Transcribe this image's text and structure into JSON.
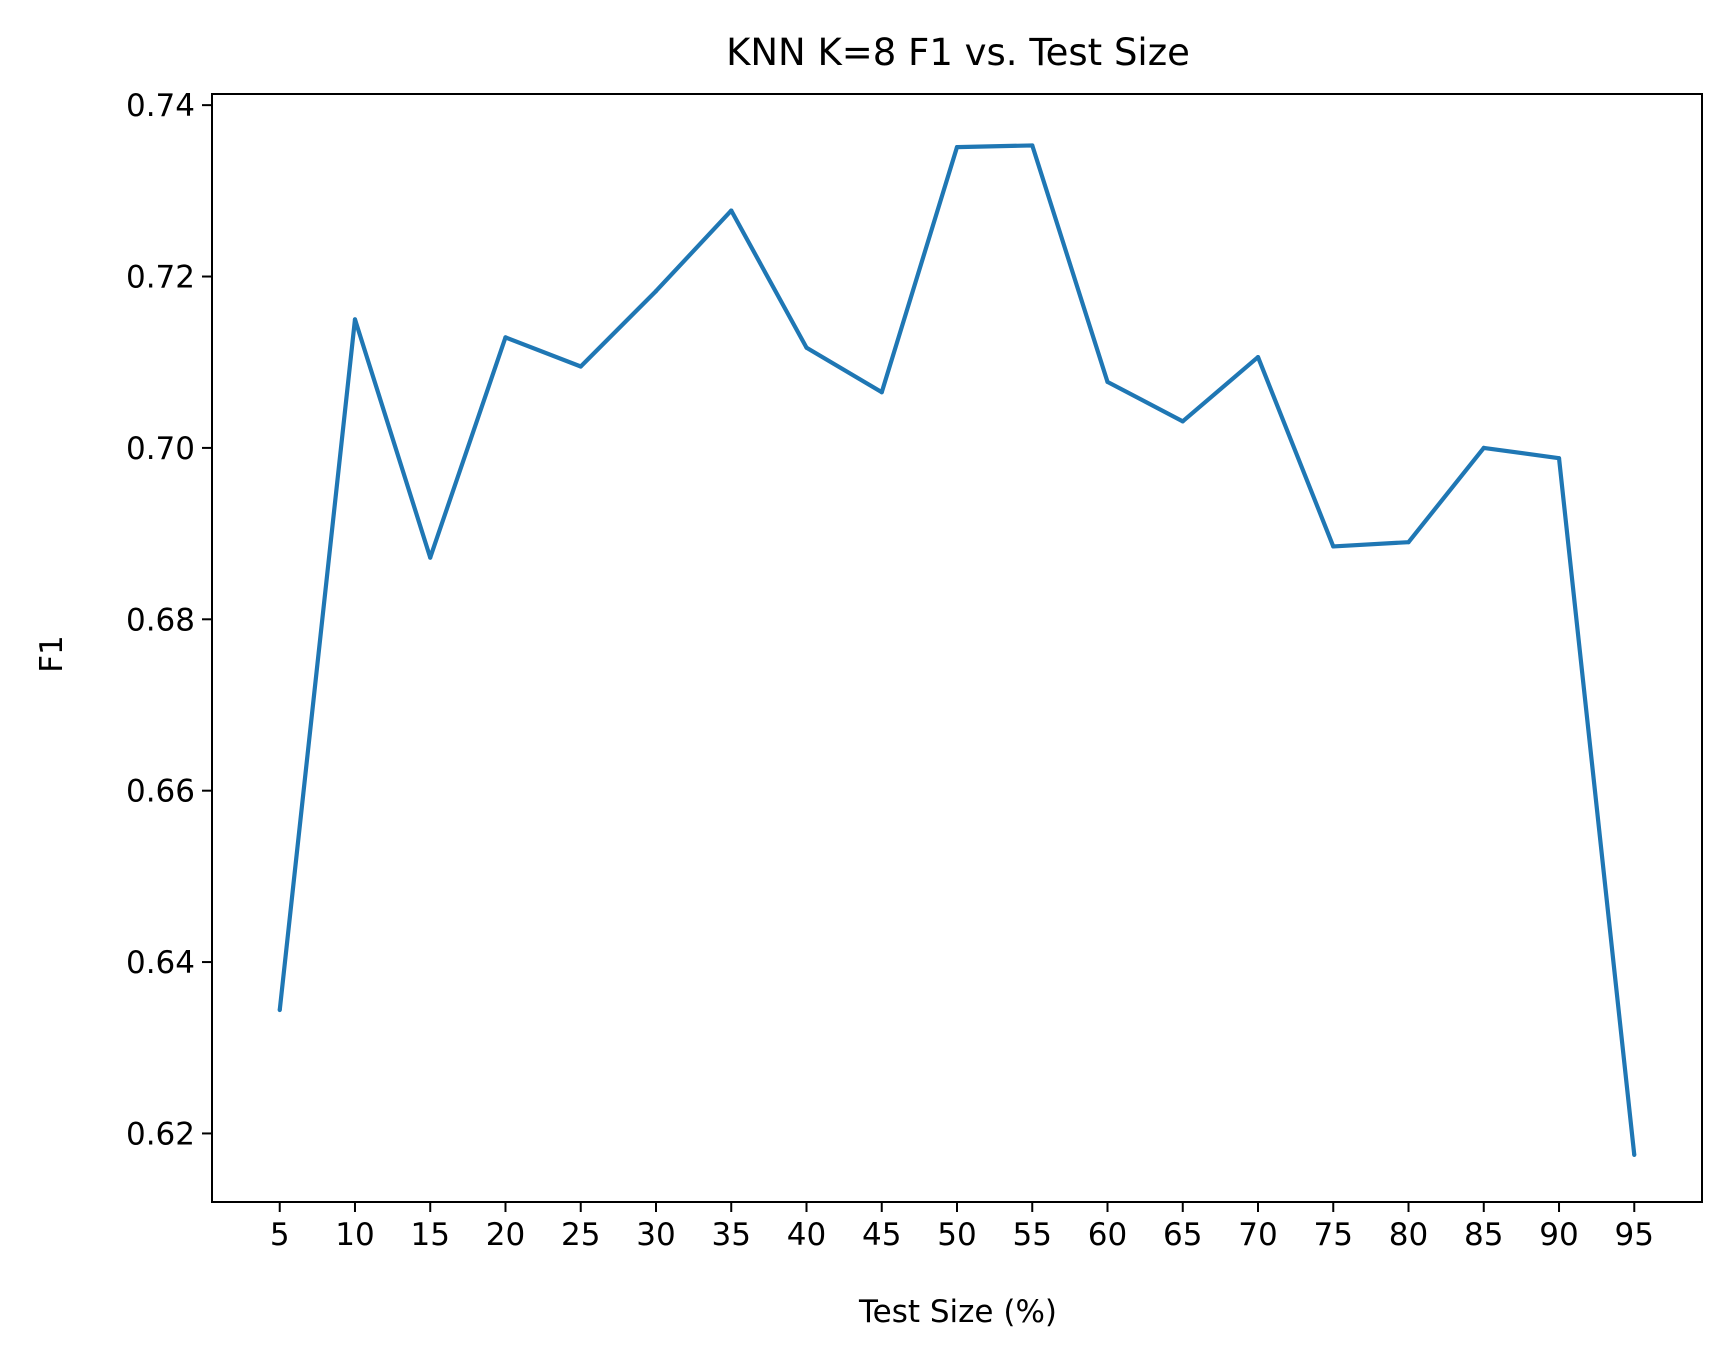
{
  "chart_data": {
    "type": "line",
    "title": "KNN K=8  F1 vs. Test Size",
    "xlabel": "Test Size (%)",
    "ylabel": "F1",
    "x": [
      5,
      10,
      15,
      20,
      25,
      30,
      35,
      40,
      45,
      50,
      55,
      60,
      65,
      70,
      75,
      80,
      85,
      90,
      95
    ],
    "xticks": [
      "5",
      "10",
      "15",
      "20",
      "25",
      "30",
      "35",
      "40",
      "45",
      "50",
      "55",
      "60",
      "65",
      "70",
      "75",
      "80",
      "85",
      "90",
      "95"
    ],
    "yticks": [
      "0.62",
      "0.64",
      "0.66",
      "0.68",
      "0.70",
      "0.72",
      "0.74"
    ],
    "ytick_values": [
      0.62,
      0.64,
      0.66,
      0.68,
      0.7,
      0.72,
      0.74
    ],
    "xlim": [
      0.5,
      99.5
    ],
    "ylim": [
      0.612,
      0.7413
    ],
    "grid": false,
    "series": [
      {
        "color": "#1f77b4",
        "values": [
          0.6344,
          0.715,
          0.6872,
          0.7129,
          0.7095,
          0.7183,
          0.7277,
          0.7117,
          0.7065,
          0.7351,
          0.7353,
          0.7077,
          0.7031,
          0.7106,
          0.6885,
          0.689,
          0.7,
          0.6988,
          0.6175
        ]
      }
    ]
  }
}
